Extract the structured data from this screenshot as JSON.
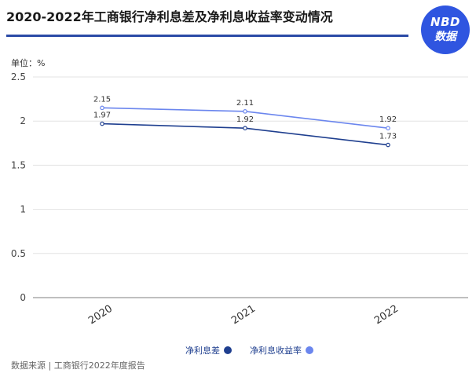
{
  "title": "2020-2022年工商银行净利息差及净利息收益率变动情况",
  "badge": {
    "line1": "NBD",
    "line2": "数据"
  },
  "unit_label": "单位：%",
  "source": "数据来源 | 工商银行2022年度报告",
  "colors": {
    "title_rule": "#2a4aa6",
    "badge": "#2f55e0"
  },
  "chart_data": {
    "type": "line",
    "categories": [
      "2020",
      "2021",
      "2022"
    ],
    "series": [
      {
        "name": "净利息差",
        "values": [
          1.97,
          1.92,
          1.73
        ],
        "color": "#1f3f8f"
      },
      {
        "name": "净利息收益率",
        "values": [
          2.15,
          2.11,
          1.92
        ],
        "color": "#6b86ee"
      }
    ],
    "ylim": [
      0,
      2.5
    ],
    "yticks": [
      "0",
      "0.5",
      "1",
      "1.5",
      "2",
      "2.5"
    ],
    "grid": true,
    "legend_position": "bottom-right"
  }
}
